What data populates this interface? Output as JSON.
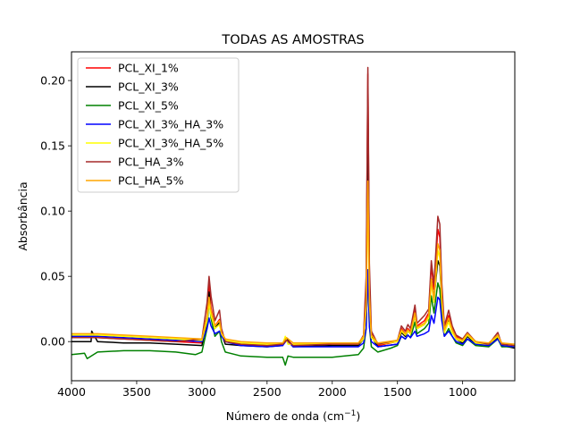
{
  "chart_data": {
    "type": "line",
    "title": "TODAS AS AMOSTRAS",
    "xlabel": "Número de onda (cm",
    "xlabel_sup": "−1",
    "xlabel_close": ")",
    "ylabel": "Absorbância",
    "xlim": [
      4000,
      600
    ],
    "ylim": [
      -0.03,
      0.222
    ],
    "x_reversed": true,
    "grid": false,
    "legend_position": "top-left",
    "xticks": [
      4000,
      3500,
      3000,
      2500,
      2000,
      1500,
      1000
    ],
    "xtick_labels": [
      "4000",
      "3500",
      "3000",
      "2500",
      "2000",
      "1500",
      "1000"
    ],
    "yticks": [
      0.0,
      0.05,
      0.1,
      0.15,
      0.2
    ],
    "ytick_labels": [
      "0.00",
      "0.05",
      "0.10",
      "0.15",
      "0.20"
    ],
    "series": [
      {
        "name": "PCL_XI_1%",
        "color": "#ff0000",
        "x": [
          4000,
          3800,
          3600,
          3400,
          3200,
          3000,
          2960,
          2945,
          2930,
          2900,
          2865,
          2850,
          2820,
          2700,
          2500,
          2380,
          2350,
          2300,
          2000,
          1800,
          1760,
          1740,
          1727,
          1715,
          1700,
          1650,
          1500,
          1470,
          1440,
          1420,
          1400,
          1366,
          1350,
          1293,
          1260,
          1240,
          1220,
          1190,
          1175,
          1160,
          1140,
          1107,
          1080,
          1050,
          1000,
          963,
          900,
          800,
          730,
          700,
          600
        ],
        "y": [
          0.004,
          0.003,
          0.002,
          0.001,
          0.0,
          -0.001,
          0.02,
          0.044,
          0.026,
          0.012,
          0.017,
          0.008,
          0.0,
          -0.002,
          -0.003,
          -0.002,
          0.002,
          -0.003,
          -0.002,
          -0.002,
          0.004,
          0.04,
          0.205,
          0.05,
          0.006,
          -0.003,
          0.0,
          0.01,
          0.006,
          0.01,
          0.008,
          0.024,
          0.012,
          0.016,
          0.022,
          0.058,
          0.04,
          0.086,
          0.08,
          0.04,
          0.01,
          0.02,
          0.01,
          0.004,
          0.001,
          0.006,
          0.0,
          -0.002,
          0.005,
          -0.002,
          -0.004
        ]
      },
      {
        "name": "PCL_XI_3%",
        "color": "#000000",
        "x": [
          4000,
          3850,
          3845,
          3800,
          3600,
          3400,
          3200,
          3000,
          2960,
          2945,
          2930,
          2900,
          2865,
          2850,
          2820,
          2700,
          2500,
          2380,
          2350,
          2300,
          2000,
          1800,
          1760,
          1740,
          1727,
          1715,
          1700,
          1650,
          1500,
          1470,
          1440,
          1420,
          1400,
          1366,
          1350,
          1293,
          1260,
          1240,
          1220,
          1190,
          1175,
          1160,
          1140,
          1107,
          1080,
          1050,
          1000,
          963,
          900,
          800,
          730,
          700,
          600
        ],
        "y": [
          0.0,
          0.0,
          0.008,
          0.0,
          -0.001,
          -0.001,
          -0.002,
          -0.003,
          0.015,
          0.038,
          0.022,
          0.01,
          0.015,
          0.006,
          -0.002,
          -0.003,
          -0.004,
          -0.003,
          0.002,
          -0.004,
          -0.003,
          -0.003,
          0.002,
          0.03,
          0.185,
          0.04,
          0.004,
          -0.004,
          -0.002,
          0.007,
          0.004,
          0.008,
          0.006,
          0.02,
          0.01,
          0.013,
          0.018,
          0.048,
          0.033,
          0.062,
          0.058,
          0.03,
          0.008,
          0.016,
          0.008,
          0.002,
          -0.001,
          0.004,
          -0.002,
          -0.003,
          0.003,
          -0.003,
          -0.005
        ]
      },
      {
        "name": "PCL_XI_5%",
        "color": "#008000",
        "x": [
          4000,
          3900,
          3880,
          3800,
          3600,
          3400,
          3200,
          3050,
          3000,
          2960,
          2945,
          2930,
          2900,
          2865,
          2850,
          2820,
          2700,
          2500,
          2380,
          2360,
          2340,
          2300,
          2000,
          1800,
          1760,
          1740,
          1727,
          1715,
          1700,
          1650,
          1550,
          1500,
          1470,
          1440,
          1420,
          1400,
          1366,
          1350,
          1293,
          1260,
          1240,
          1220,
          1190,
          1175,
          1160,
          1140,
          1107,
          1080,
          1050,
          1000,
          963,
          900,
          800,
          730,
          700,
          600
        ],
        "y": [
          -0.01,
          -0.009,
          -0.013,
          -0.008,
          -0.007,
          -0.007,
          -0.008,
          -0.01,
          -0.008,
          0.01,
          0.032,
          0.018,
          0.004,
          0.008,
          0.0,
          -0.008,
          -0.011,
          -0.012,
          -0.012,
          -0.018,
          -0.011,
          -0.012,
          -0.012,
          -0.01,
          -0.005,
          0.01,
          0.055,
          0.012,
          -0.004,
          -0.008,
          -0.005,
          -0.003,
          0.004,
          0.002,
          0.005,
          0.003,
          0.015,
          0.006,
          0.01,
          0.014,
          0.035,
          0.022,
          0.045,
          0.04,
          0.02,
          0.004,
          0.01,
          0.004,
          -0.001,
          -0.003,
          0.002,
          -0.003,
          -0.004,
          0.002,
          -0.004,
          -0.004
        ]
      },
      {
        "name": "PCL_XI_3%_HA_3%",
        "color": "#0000ff",
        "x": [
          4000,
          3800,
          3600,
          3400,
          3200,
          3000,
          2960,
          2945,
          2930,
          2900,
          2865,
          2850,
          2820,
          2700,
          2500,
          2380,
          2350,
          2300,
          2000,
          1800,
          1760,
          1740,
          1727,
          1715,
          1700,
          1650,
          1500,
          1470,
          1440,
          1420,
          1400,
          1366,
          1350,
          1293,
          1260,
          1240,
          1220,
          1190,
          1175,
          1160,
          1140,
          1107,
          1080,
          1050,
          1000,
          963,
          900,
          800,
          730,
          700,
          600
        ],
        "y": [
          0.004,
          0.004,
          0.003,
          0.002,
          0.001,
          0.0,
          0.01,
          0.018,
          0.012,
          0.006,
          0.008,
          0.004,
          0.0,
          -0.003,
          -0.004,
          -0.003,
          0.001,
          -0.004,
          -0.004,
          -0.004,
          -0.001,
          0.01,
          0.055,
          0.012,
          0.0,
          -0.004,
          -0.002,
          0.004,
          0.002,
          0.005,
          0.003,
          0.008,
          0.004,
          0.006,
          0.008,
          0.02,
          0.014,
          0.034,
          0.032,
          0.016,
          0.004,
          0.008,
          0.004,
          0.0,
          -0.002,
          0.002,
          -0.002,
          -0.003,
          0.002,
          -0.003,
          -0.004
        ]
      },
      {
        "name": "PCL_XI_3%_HA_5%",
        "color": "#ffff00",
        "x": [
          4000,
          3800,
          3600,
          3400,
          3200,
          3000,
          2960,
          2945,
          2930,
          2900,
          2865,
          2850,
          2820,
          2700,
          2500,
          2380,
          2360,
          2340,
          2300,
          2000,
          1800,
          1760,
          1740,
          1727,
          1715,
          1700,
          1650,
          1500,
          1470,
          1440,
          1420,
          1400,
          1366,
          1350,
          1293,
          1260,
          1240,
          1220,
          1190,
          1175,
          1160,
          1140,
          1107,
          1080,
          1050,
          1000,
          963,
          900,
          800,
          730,
          700,
          600
        ],
        "y": [
          0.005,
          0.005,
          0.004,
          0.003,
          0.002,
          0.001,
          0.016,
          0.03,
          0.02,
          0.01,
          0.013,
          0.006,
          0.001,
          -0.001,
          -0.002,
          -0.002,
          0.004,
          -0.002,
          -0.002,
          -0.002,
          -0.002,
          0.002,
          0.025,
          0.12,
          0.03,
          0.003,
          -0.002,
          0.0,
          0.008,
          0.005,
          0.008,
          0.006,
          0.02,
          0.01,
          0.013,
          0.018,
          0.045,
          0.03,
          0.07,
          0.064,
          0.03,
          0.007,
          0.015,
          0.007,
          0.002,
          0.0,
          0.005,
          -0.001,
          -0.002,
          0.004,
          -0.002,
          -0.003
        ]
      },
      {
        "name": "PCL_HA_3%",
        "color": "#a52a2a",
        "x": [
          4000,
          3800,
          3600,
          3400,
          3200,
          3000,
          2960,
          2945,
          2930,
          2900,
          2865,
          2850,
          2820,
          2700,
          2500,
          2380,
          2350,
          2300,
          2000,
          1800,
          1760,
          1740,
          1727,
          1715,
          1700,
          1650,
          1500,
          1470,
          1440,
          1420,
          1400,
          1366,
          1350,
          1293,
          1260,
          1240,
          1220,
          1190,
          1175,
          1160,
          1140,
          1107,
          1080,
          1050,
          1000,
          963,
          900,
          800,
          730,
          700,
          600
        ],
        "y": [
          0.003,
          0.003,
          0.002,
          0.001,
          0.0,
          0.002,
          0.03,
          0.05,
          0.035,
          0.016,
          0.024,
          0.01,
          0.0,
          -0.002,
          -0.003,
          -0.002,
          0.001,
          -0.003,
          -0.002,
          -0.002,
          0.005,
          0.05,
          0.21,
          0.06,
          0.008,
          -0.002,
          0.001,
          0.012,
          0.008,
          0.013,
          0.01,
          0.028,
          0.014,
          0.02,
          0.025,
          0.062,
          0.044,
          0.096,
          0.09,
          0.045,
          0.012,
          0.024,
          0.012,
          0.005,
          0.002,
          0.007,
          0.0,
          -0.002,
          0.007,
          -0.002,
          -0.003
        ]
      },
      {
        "name": "PCL_HA_5%",
        "color": "#ffa500",
        "x": [
          4000,
          3800,
          3600,
          3400,
          3200,
          3000,
          2960,
          2945,
          2930,
          2900,
          2865,
          2850,
          2820,
          2700,
          2500,
          2380,
          2350,
          2300,
          2000,
          1800,
          1760,
          1740,
          1727,
          1715,
          1700,
          1650,
          1500,
          1470,
          1440,
          1420,
          1400,
          1366,
          1350,
          1293,
          1260,
          1240,
          1220,
          1190,
          1175,
          1160,
          1140,
          1107,
          1080,
          1050,
          1000,
          963,
          900,
          800,
          730,
          700,
          600
        ],
        "y": [
          0.006,
          0.006,
          0.005,
          0.004,
          0.003,
          0.002,
          0.02,
          0.034,
          0.024,
          0.012,
          0.016,
          0.007,
          0.002,
          0.0,
          -0.001,
          -0.001,
          0.003,
          -0.001,
          -0.001,
          -0.001,
          0.004,
          0.03,
          0.123,
          0.035,
          0.005,
          -0.001,
          0.001,
          0.009,
          0.006,
          0.009,
          0.007,
          0.022,
          0.011,
          0.014,
          0.02,
          0.048,
          0.032,
          0.075,
          0.07,
          0.034,
          0.009,
          0.018,
          0.009,
          0.003,
          0.001,
          0.006,
          0.0,
          -0.001,
          0.005,
          -0.001,
          -0.002
        ]
      }
    ]
  }
}
